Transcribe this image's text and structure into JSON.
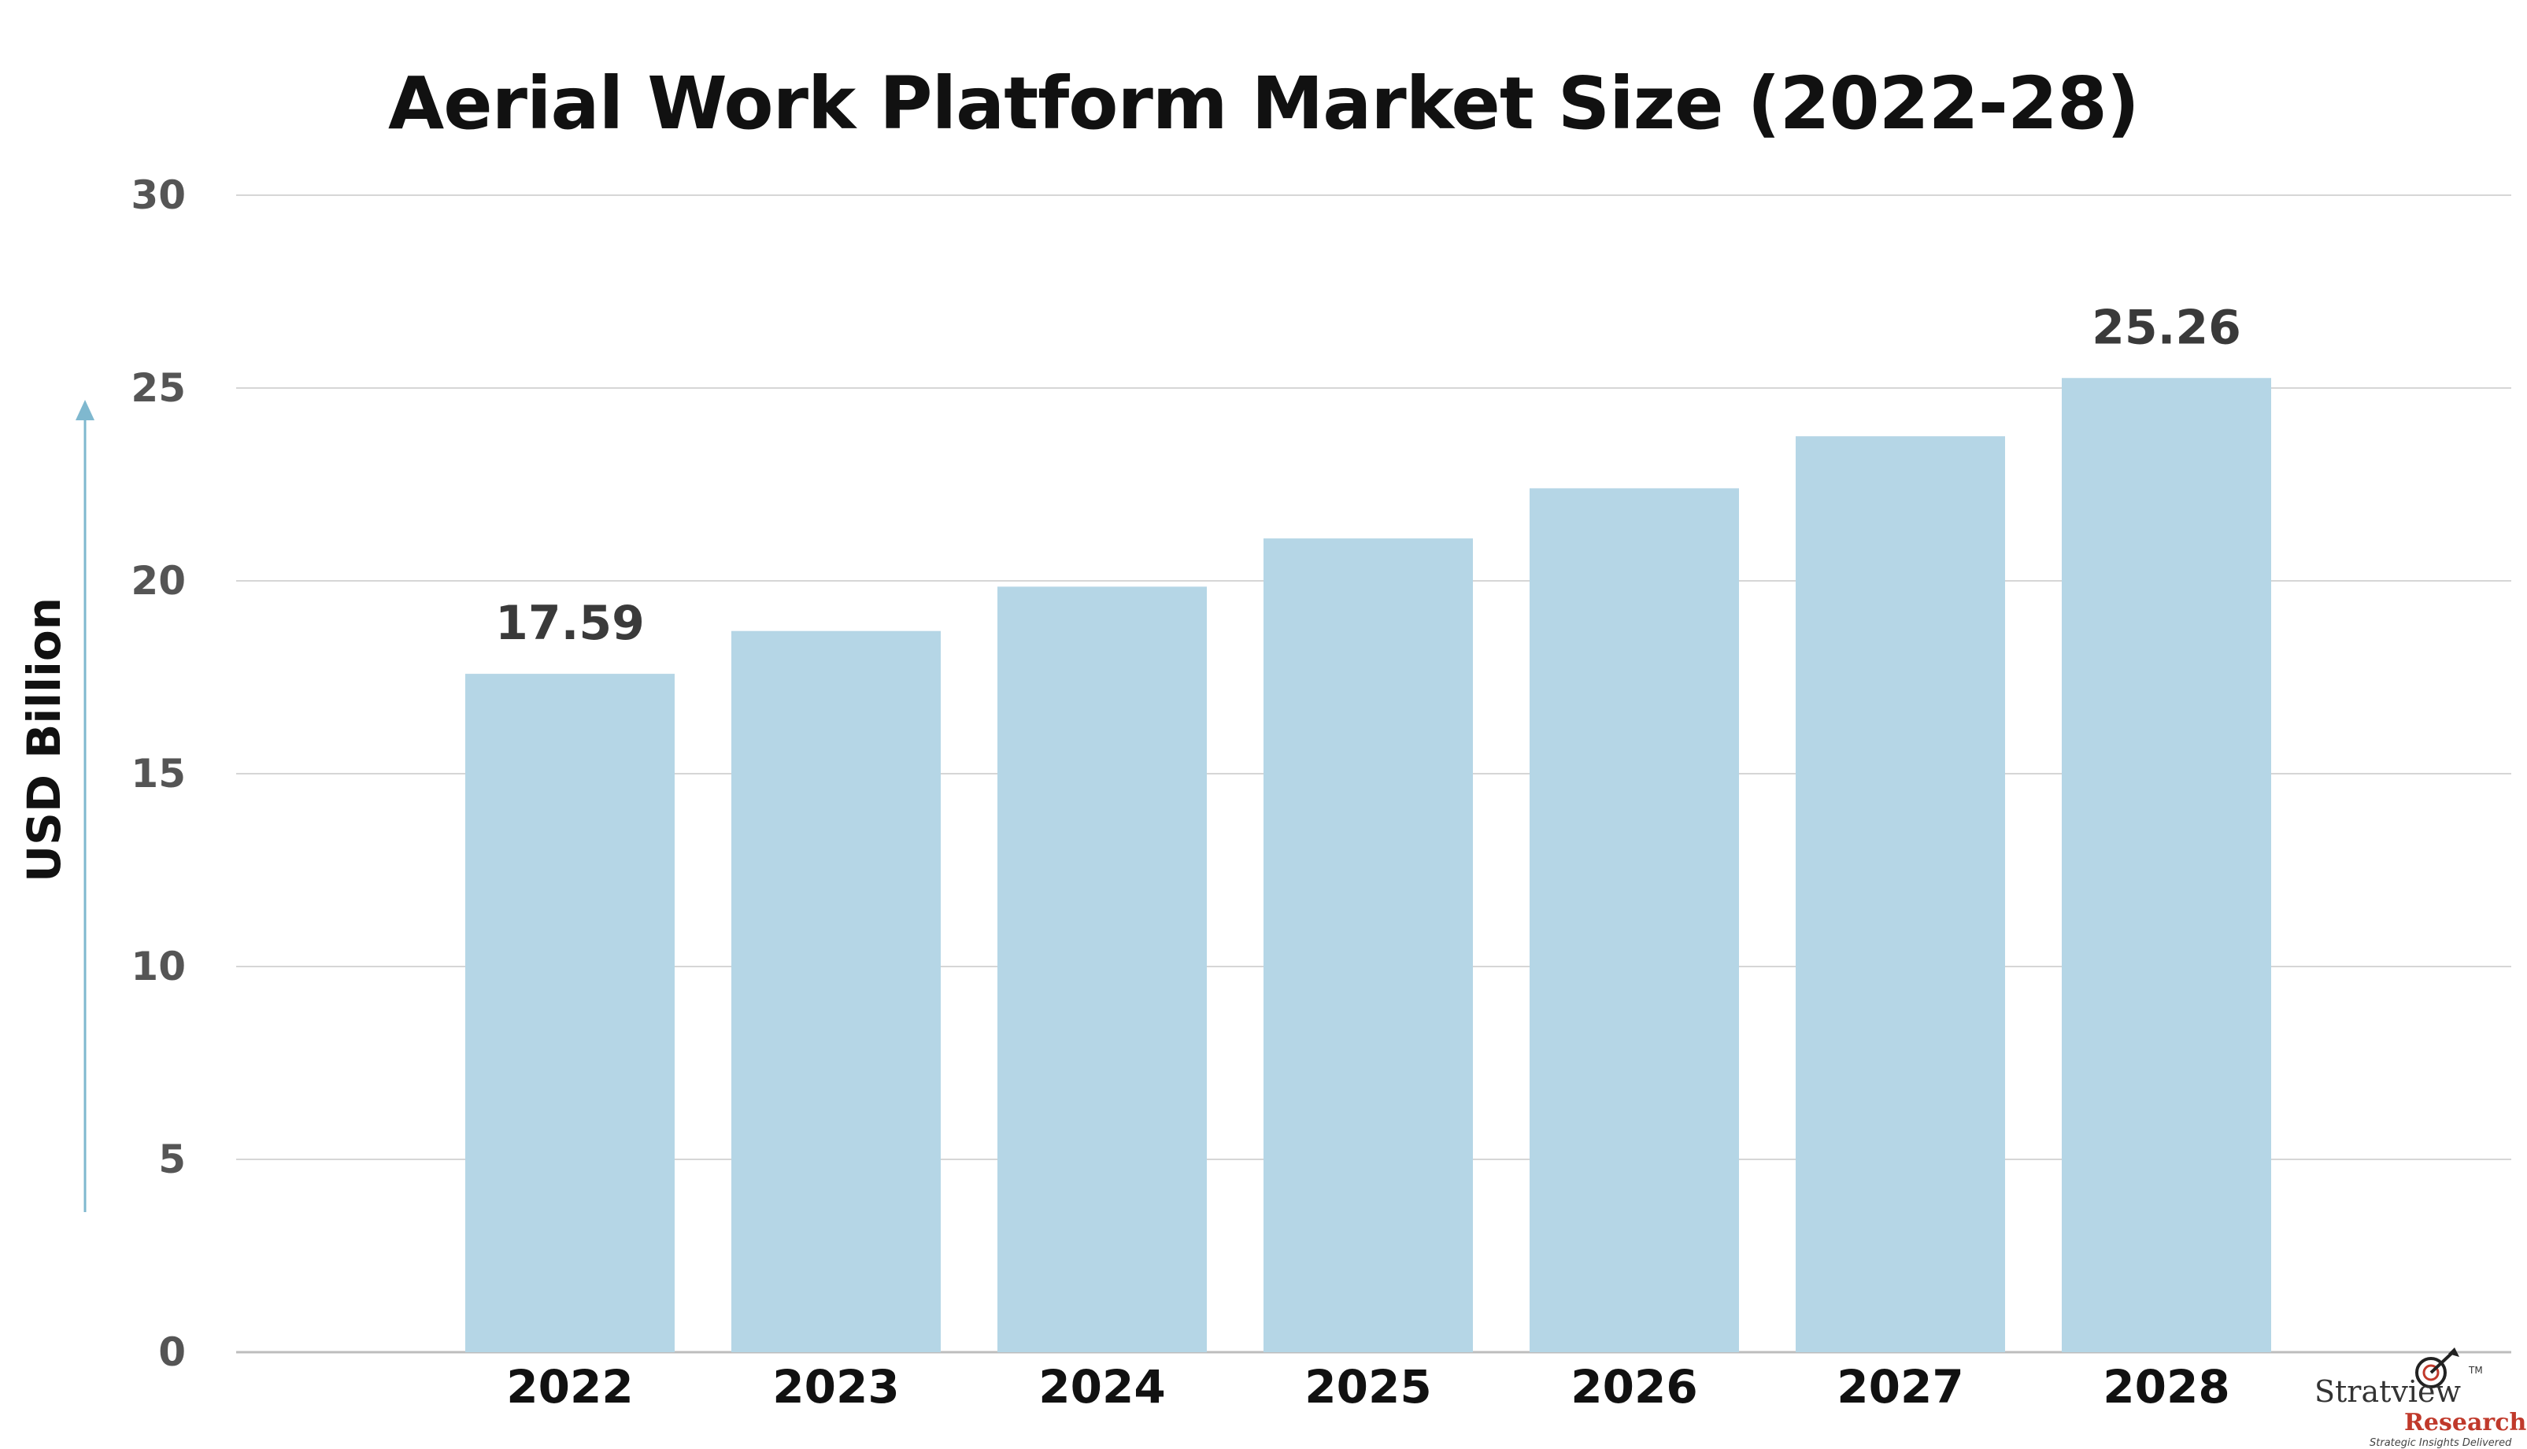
{
  "chart_data": {
    "type": "bar",
    "title": "Aerial Work Platform Market Size (2022-28)",
    "ylabel": "USD Billion",
    "xlabel": "",
    "categories": [
      "2022",
      "2023",
      "2024",
      "2025",
      "2026",
      "2027",
      "2028"
    ],
    "values": [
      17.59,
      18.7,
      19.85,
      21.1,
      22.4,
      23.75,
      25.26
    ],
    "data_labels": [
      {
        "index": 0,
        "text": "17.59"
      },
      {
        "index": 6,
        "text": "25.26"
      }
    ],
    "ylim": [
      0,
      30
    ],
    "yticks": [
      0,
      5,
      10,
      15,
      20,
      25,
      30
    ],
    "grid": true,
    "legend": "none",
    "bar_color": "#b5d6e6",
    "axis_arrow_color": "#7fb8cf"
  },
  "logo": {
    "brand": "Stratview",
    "tm": "TM",
    "sub": "Research",
    "tagline": "Strategic Insights Delivered"
  }
}
